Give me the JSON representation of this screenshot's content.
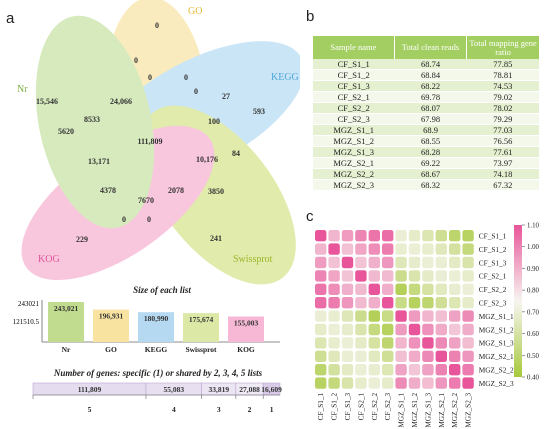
{
  "panels": {
    "a": "a",
    "b": "b",
    "c": "c"
  },
  "venn": {
    "sets": [
      {
        "name": "GO",
        "color": "#f7dc8c"
      },
      {
        "name": "KEGG",
        "color": "#9fd0ef"
      },
      {
        "name": "Swissprot",
        "color": "#c9dc67"
      },
      {
        "name": "KOG",
        "color": "#f49ac2"
      },
      {
        "name": "Nr",
        "color": "#b7d98a"
      }
    ],
    "regions": [
      "0",
      "0",
      "0",
      "0",
      "15,546",
      "24,066",
      "0",
      "27",
      "593",
      "5620",
      "8533",
      "111,809",
      "100",
      "13,171",
      "10,176",
      "84",
      "4378",
      "2078",
      "3850",
      "7670",
      "0",
      "0",
      "229",
      "241"
    ]
  },
  "bars": {
    "title": "Size of each list",
    "yticks": [
      "243021",
      "121510.5"
    ],
    "items": [
      {
        "label": "Nr",
        "value": "243,021",
        "color": "#c1dc8e"
      },
      {
        "label": "GO",
        "value": "196,931",
        "color": "#f8e3a1"
      },
      {
        "label": "KEGG",
        "value": "180,990",
        "color": "#b5d9f0"
      },
      {
        "label": "Swissprot",
        "value": "175,674",
        "color": "#dce9a6"
      },
      {
        "label": "KOG",
        "value": "155,003",
        "color": "#f6b8d4"
      }
    ]
  },
  "chart_data": [
    {
      "type": "bar",
      "title": "Size of each list",
      "categories": [
        "Nr",
        "GO",
        "KEGG",
        "Swissprot",
        "KOG"
      ],
      "values": [
        243021,
        196931,
        180990,
        175674,
        155003
      ],
      "ylim": [
        0,
        243021
      ]
    },
    {
      "type": "bar",
      "title": "Number of genes: specific (1) or shared by 2, 3, 4, 5 lists",
      "categories": [
        "5",
        "4",
        "3",
        "2",
        "1"
      ],
      "values": [
        111809,
        55083,
        33819,
        27088,
        16609
      ]
    },
    {
      "type": "heatmap",
      "x": [
        "CF_S1_1",
        "CF_S1_2",
        "CF_S1_3",
        "CF_S2_1",
        "CF_S2_2",
        "CF_S2_3",
        "MGZ_S1_1",
        "MGZ_S1_2",
        "MGZ_S1_3",
        "MGZ_S2_1",
        "MGZ_S2_2",
        "MGZ_S2_3"
      ],
      "y": [
        "CF_S1_1",
        "CF_S1_2",
        "CF_S1_3",
        "CF_S2_1",
        "CF_S2_2",
        "CF_S2_3",
        "MGZ_S1_1",
        "MGZ_S1_2",
        "MGZ_S1_3",
        "MGZ_S2_1",
        "MGZ_S2_2",
        "MGZ_S2_3"
      ],
      "colorbar_ticks": [
        "1.10",
        "1.00",
        "0.90",
        "0.80",
        "0.70",
        "0.60",
        "0.50",
        "0.40"
      ],
      "colorbar_range": [
        0.4,
        1.1
      ]
    }
  ],
  "stacked": {
    "title": "Number of genes: specific (1) or shared by 2, 3, 4, 5 lists",
    "segments": [
      {
        "value": "111,809",
        "n": "5"
      },
      {
        "value": "55,083",
        "n": "4"
      },
      {
        "value": "33,819",
        "n": "3"
      },
      {
        "value": "27,088",
        "n": "2"
      },
      {
        "value": "16,609",
        "n": "1"
      }
    ]
  },
  "table": {
    "headers": [
      "Sample name",
      "Total clean reads",
      "Total mapping gene ratio"
    ],
    "rows": [
      [
        "CF_S1_1",
        "68.74",
        "77.85"
      ],
      [
        "CF_S1_2",
        "68.84",
        "78.81"
      ],
      [
        "CF_S1_3",
        "68.22",
        "74.53"
      ],
      [
        "CF_S2_1",
        "69.78",
        "79.02"
      ],
      [
        "CF_S2_2",
        "68.07",
        "78.02"
      ],
      [
        "CF_S2_3",
        "67.98",
        "79.29"
      ],
      [
        "MGZ_S1_1",
        "68.9",
        "77.03"
      ],
      [
        "MGZ_S1_2",
        "68.55",
        "76.56"
      ],
      [
        "MGZ_S1_3",
        "68.28",
        "77.61"
      ],
      [
        "MGZ_S2_1",
        "69.22",
        "73.97"
      ],
      [
        "MGZ_S2_2",
        "68.67",
        "74.18"
      ],
      [
        "MGZ_S2_3",
        "68.32",
        "67.32"
      ]
    ]
  },
  "heatmap": {
    "labels": [
      "CF_S1_1",
      "CF_S1_2",
      "CF_S1_3",
      "CF_S2_1",
      "CF_S2_2",
      "CF_S2_3",
      "MGZ_S1_1",
      "MGZ_S1_2",
      "MGZ_S1_3",
      "MGZ_S2_1",
      "MGZ_S2_2",
      "MGZ_S2_3"
    ],
    "colorbar": [
      "1.10",
      "1.00",
      "0.90",
      "0.80",
      "0.70",
      "0.60",
      "0.50",
      "0.40"
    ]
  }
}
